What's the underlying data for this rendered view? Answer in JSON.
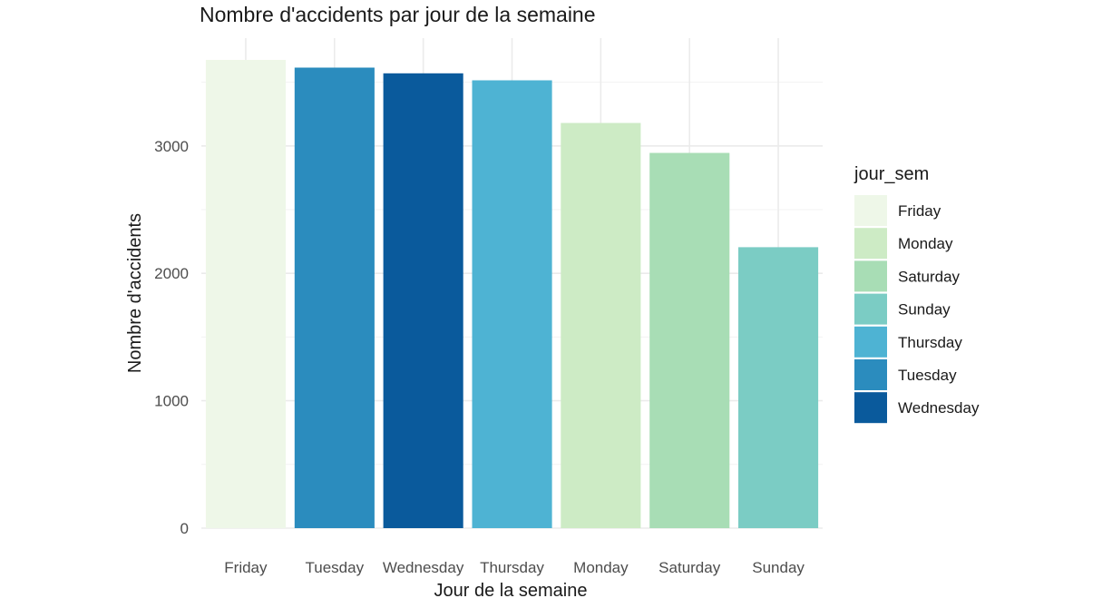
{
  "chart_data": {
    "type": "bar",
    "title": "Nombre d'accidents par jour de la semaine",
    "xlabel": "Jour de la semaine",
    "ylabel": "Nombre d'accidents",
    "categories": [
      "Friday",
      "Tuesday",
      "Wednesday",
      "Thursday",
      "Monday",
      "Saturday",
      "Sunday"
    ],
    "values": [
      3675,
      3615,
      3570,
      3515,
      3180,
      2945,
      2205
    ],
    "colors": [
      "#eef7e8",
      "#2b8cbe",
      "#0a5a9c",
      "#4eb3d3",
      "#cdebc5",
      "#a8ddb5",
      "#7bccc4"
    ],
    "ylim": [
      0,
      3700
    ],
    "yticks": [
      0,
      1000,
      2000,
      3000
    ],
    "ytick_labels": [
      "0",
      "1000",
      "2000",
      "3000"
    ],
    "grid": true,
    "legend": {
      "title": "jour_sem",
      "placement": "right",
      "entries": [
        {
          "label": "Friday",
          "color": "#eef7e8"
        },
        {
          "label": "Monday",
          "color": "#cdebc5"
        },
        {
          "label": "Saturday",
          "color": "#a8ddb5"
        },
        {
          "label": "Sunday",
          "color": "#7bccc4"
        },
        {
          "label": "Thursday",
          "color": "#4eb3d3"
        },
        {
          "label": "Tuesday",
          "color": "#2b8cbe"
        },
        {
          "label": "Wednesday",
          "color": "#0a5a9c"
        }
      ]
    }
  }
}
